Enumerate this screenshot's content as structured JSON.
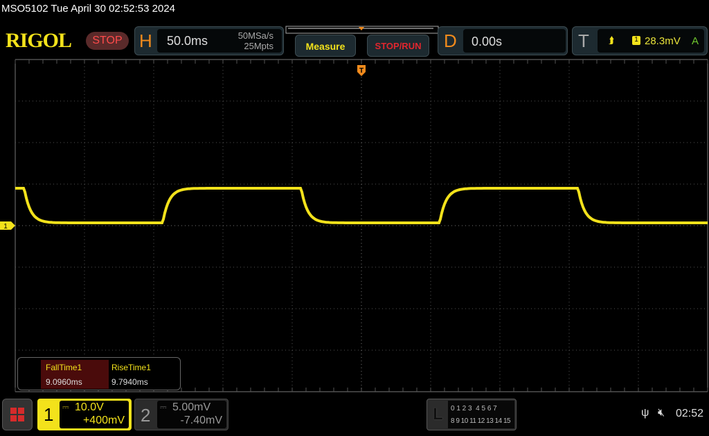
{
  "status_bar": {
    "title": "MSO5102  Tue April 30 02:52:53 2024"
  },
  "logo": "RIGOL",
  "run_state": "STOP",
  "horizontal": {
    "label": "H",
    "timebase": "50.0ms",
    "sample_rate": "50MSa/s",
    "memory_depth": "25Mpts"
  },
  "buttons": {
    "measure": "Measure",
    "stop_run": "STOP/RUN"
  },
  "delay": {
    "label": "D",
    "value": "0.00s"
  },
  "trigger": {
    "label": "T",
    "source": "1",
    "level": "28.3mV",
    "mode": "A",
    "marker": "T"
  },
  "measurements": [
    {
      "name": "FallTime1",
      "value": "9.0960ms"
    },
    {
      "name": "RiseTime1",
      "value": "9.7940ms"
    }
  ],
  "channel1": {
    "number": "1",
    "scale": "10.0V",
    "offset": "+400mV",
    "marker": "1",
    "color": "#f3e21b"
  },
  "channel2": {
    "number": "2",
    "scale": "5.00mV",
    "offset": "-7.40mV"
  },
  "logic": {
    "label": "L",
    "row1": "0 1 2 3  4 5 6 7",
    "row2": "8 9 10 11 12 13 14 15"
  },
  "system": {
    "clock": "02:52",
    "usb_icon": "usb-icon",
    "sound_icon": "speaker-muted-icon"
  }
}
